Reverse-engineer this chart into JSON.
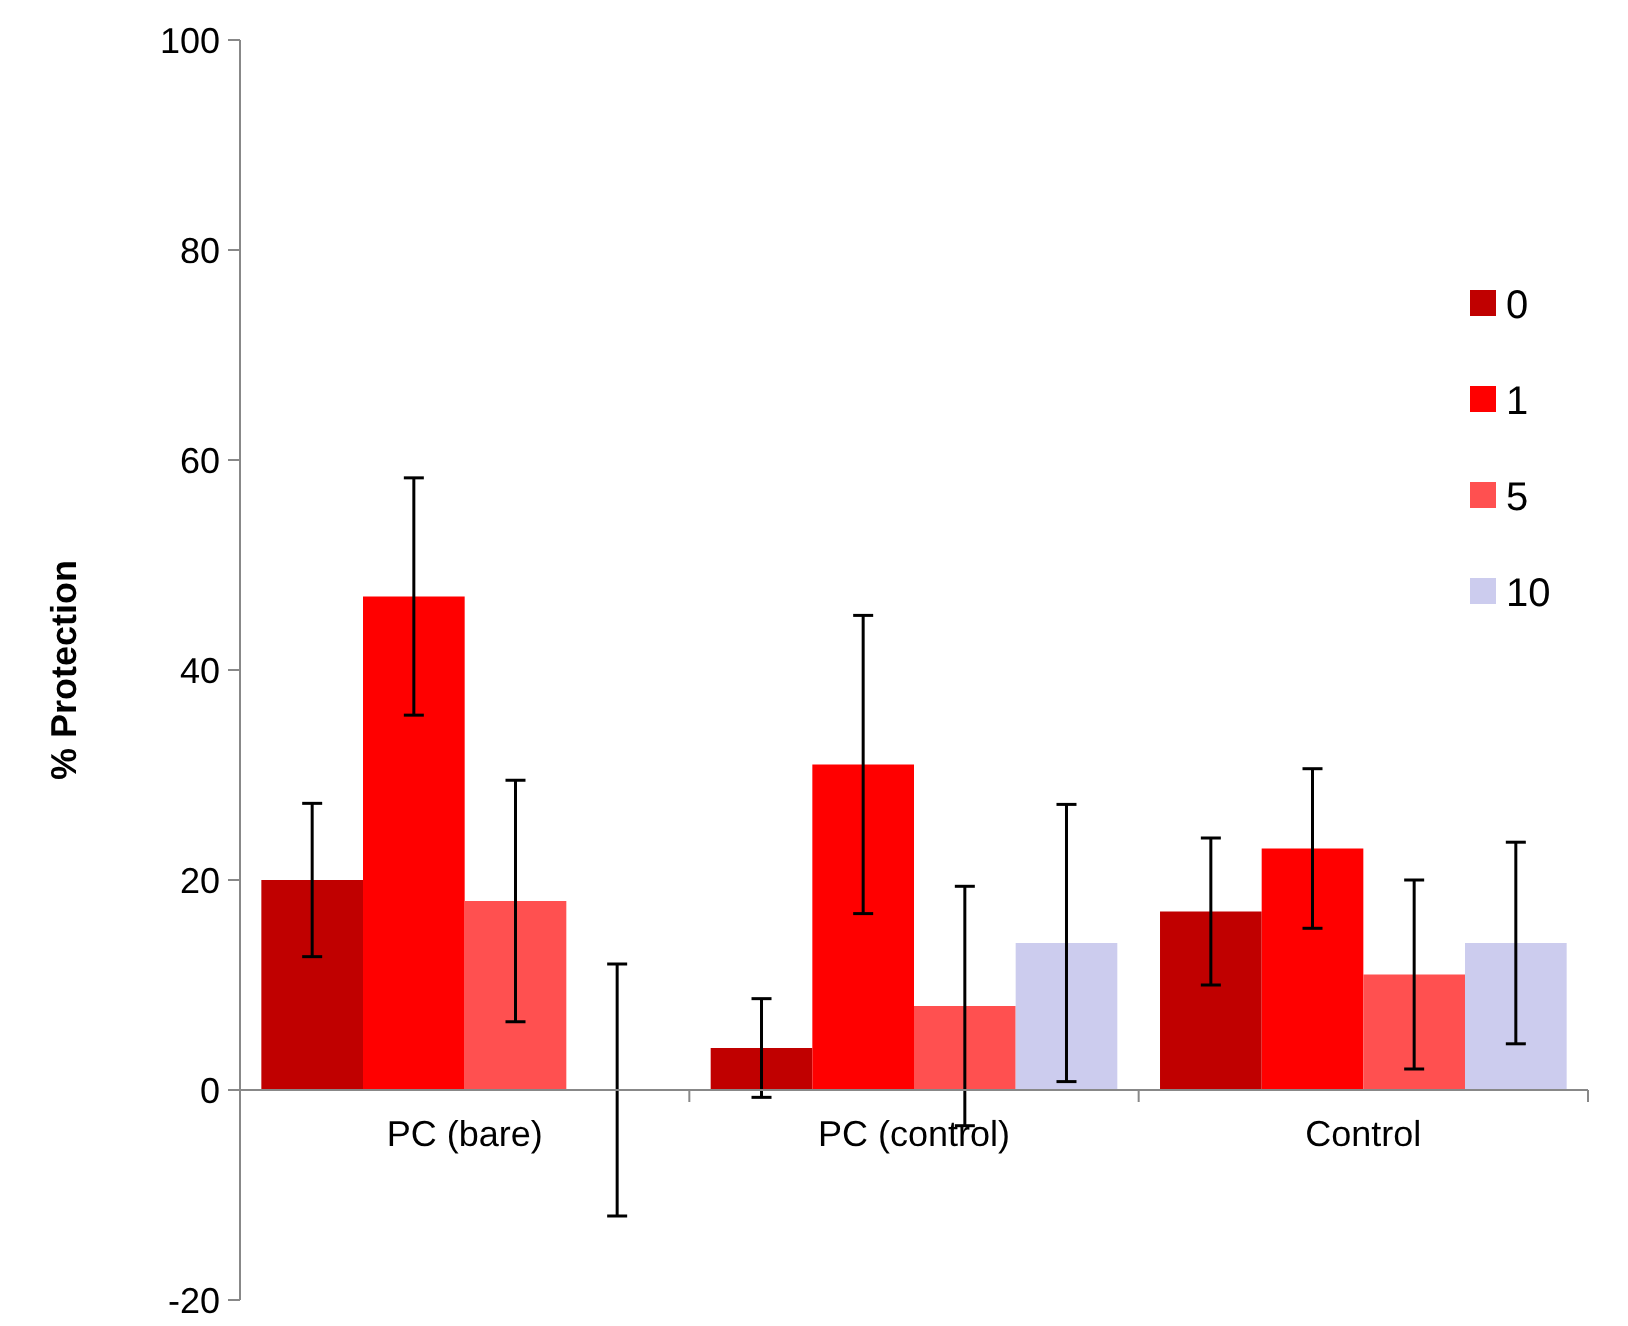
{
  "chart_data": {
    "type": "bar",
    "ylabel": "% Protection",
    "categories": [
      "PC (bare)",
      "PC (control)",
      "Control"
    ],
    "series": [
      {
        "name": "0",
        "color": "#c00000",
        "values": [
          20,
          4,
          17
        ],
        "errors": [
          7.3,
          4.7,
          7
        ]
      },
      {
        "name": "1",
        "color": "#ff0000",
        "values": [
          47,
          31,
          23
        ],
        "errors": [
          11.3,
          14.2,
          7.6
        ]
      },
      {
        "name": "5",
        "color": "#ff5050",
        "values": [
          18,
          8,
          11
        ],
        "errors": [
          11.5,
          11.4,
          9
        ]
      },
      {
        "name": "10",
        "color": "#ccccee",
        "values": [
          0,
          14,
          14
        ],
        "errors": [
          12,
          13.2,
          9.6
        ]
      }
    ],
    "ylim": [
      -20,
      100
    ],
    "yticks": [
      -20,
      0,
      20,
      40,
      60,
      80,
      100
    ],
    "grid": false,
    "legend": "top right"
  }
}
